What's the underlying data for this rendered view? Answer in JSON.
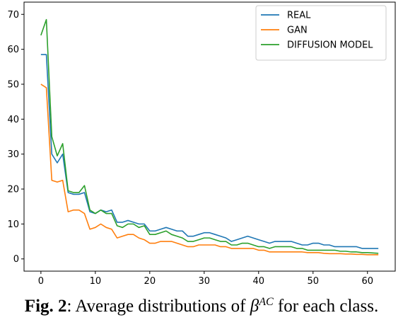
{
  "caption": {
    "label": "Fig. 2",
    "separator": ":",
    "text_before": " Average distributions of ",
    "symbol": "β",
    "superscript": "AC",
    "text_after": " for each class."
  },
  "chart_data": {
    "type": "line",
    "title": "",
    "xlabel": "",
    "ylabel": "",
    "xlim": [
      -3.1,
      65.1
    ],
    "ylim": [
      -3.5,
      73.5
    ],
    "xticks": [
      0,
      10,
      20,
      30,
      40,
      50,
      60
    ],
    "yticks": [
      0,
      10,
      20,
      30,
      40,
      50,
      60,
      70
    ],
    "grid": false,
    "legend": "top-right",
    "x": [
      0,
      1,
      2,
      3,
      4,
      5,
      6,
      7,
      8,
      9,
      10,
      11,
      12,
      13,
      14,
      15,
      16,
      17,
      18,
      19,
      20,
      21,
      22,
      23,
      24,
      25,
      26,
      27,
      28,
      29,
      30,
      31,
      32,
      33,
      34,
      35,
      36,
      37,
      38,
      39,
      40,
      41,
      42,
      43,
      44,
      45,
      46,
      47,
      48,
      49,
      50,
      51,
      52,
      53,
      54,
      55,
      56,
      57,
      58,
      59,
      60,
      61,
      62
    ],
    "series": [
      {
        "name": "REAL",
        "color": "#1f77b4",
        "values": [
          58.5,
          58.5,
          30,
          27.5,
          30,
          19,
          18.5,
          18.5,
          19,
          13.5,
          13,
          14,
          13.5,
          14,
          10.5,
          10.5,
          11,
          10.5,
          10,
          10,
          8,
          8,
          8.5,
          9,
          8.5,
          8,
          8,
          6.5,
          6.5,
          7,
          7.5,
          7.5,
          7,
          6.5,
          6,
          5,
          5.5,
          6,
          6.5,
          6,
          5.5,
          5,
          4.5,
          5,
          5,
          5,
          5,
          4.5,
          4,
          4,
          4.5,
          4.5,
          4,
          4,
          3.5,
          3.5,
          3.5,
          3.5,
          3.5,
          3,
          3,
          3,
          3
        ]
      },
      {
        "name": "GAN",
        "color": "#ff7f0e",
        "values": [
          50,
          49,
          22.5,
          22,
          22.5,
          13.5,
          14,
          14,
          13,
          8.5,
          9,
          10,
          9,
          8.5,
          6,
          6.5,
          7,
          7,
          6,
          5.5,
          4.5,
          4.5,
          5,
          5,
          5,
          4.5,
          4,
          3.5,
          3.5,
          4,
          4,
          4,
          4,
          3.5,
          3.5,
          3,
          3,
          3,
          3,
          3,
          2.5,
          2.5,
          2,
          2,
          2,
          2,
          2,
          2,
          2,
          1.8,
          1.8,
          1.8,
          1.6,
          1.5,
          1.5,
          1.5,
          1.4,
          1.4,
          1.3,
          1.3,
          1.2,
          1.2,
          1.2
        ]
      },
      {
        "name": "DIFFUSION MODEL",
        "color": "#2ca02c",
        "values": [
          64,
          68.5,
          35,
          29.5,
          33,
          19.5,
          19,
          19,
          21,
          14,
          13,
          14,
          13,
          13,
          9.5,
          9,
          10,
          10,
          9,
          9.5,
          7,
          7,
          7.5,
          8,
          7,
          6.5,
          6,
          5,
          5,
          5.5,
          6,
          6,
          5.5,
          5,
          5,
          4,
          4,
          4.5,
          4.5,
          4,
          3.5,
          3.5,
          3,
          3.5,
          3.5,
          3.5,
          3.5,
          3,
          3,
          2.5,
          2.5,
          2.5,
          2.5,
          2.5,
          2.5,
          2.2,
          2.2,
          2,
          2,
          1.8,
          1.8,
          1.7,
          1.6
        ]
      }
    ]
  }
}
